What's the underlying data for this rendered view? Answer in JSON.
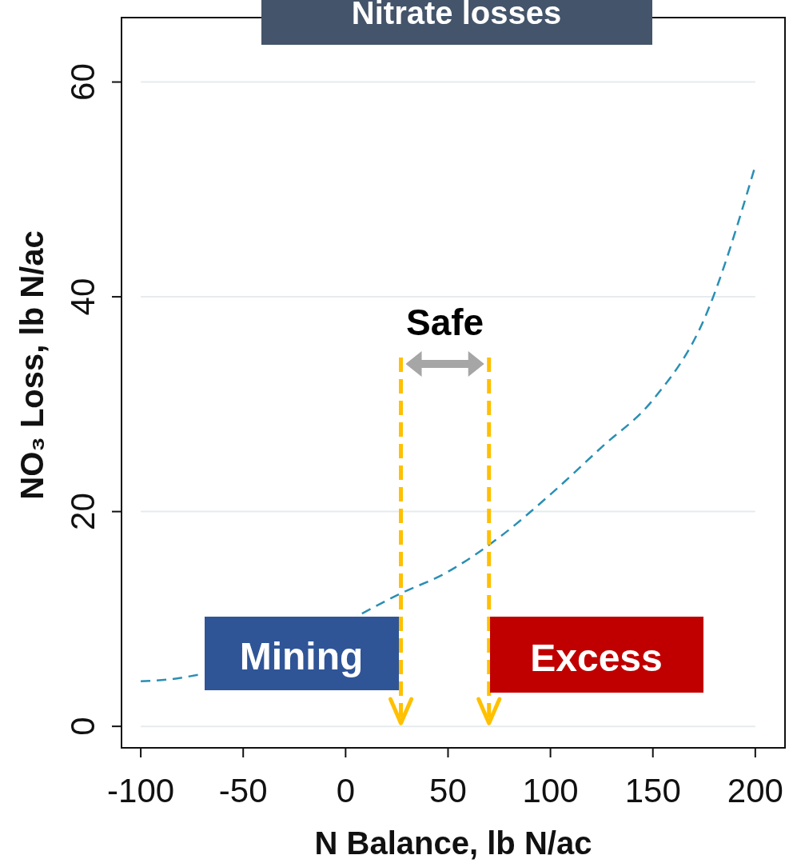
{
  "chart_data": {
    "type": "line",
    "title": "Nitrate losses",
    "xlabel": "N Balance, lb N/ac",
    "ylabel": "NO₃ Loss, lb N/ac",
    "x": [
      -100,
      -85,
      -72,
      -50,
      -25,
      8,
      25,
      50,
      75,
      100,
      125,
      150,
      175,
      200
    ],
    "series": [
      {
        "color": "#2a8fb4",
        "values": [
          4.2,
          4.4,
          4.8,
          null,
          null,
          10.5,
          12.2,
          14.4,
          17.6,
          21.6,
          26,
          30.4,
          37.9,
          52.2
        ]
      }
    ],
    "xlim": [
      -109.4,
      214.5
    ],
    "ylim": [
      -2,
      66
    ],
    "xticks": [
      -100,
      -50,
      0,
      50,
      100,
      150,
      200
    ],
    "yticks": [
      0,
      20,
      40,
      60
    ],
    "grid": "y",
    "line_style": "dashed",
    "marker": "none",
    "ref_lines": [
      {
        "axis": "x",
        "value": 27,
        "color": "#ffc000",
        "line_style": "dashed"
      },
      {
        "axis": "x",
        "value": 70,
        "color": "#ffc000",
        "line_style": "dashed"
      }
    ],
    "annotations": [
      "Safe",
      "Mining",
      "Excess"
    ]
  }
}
